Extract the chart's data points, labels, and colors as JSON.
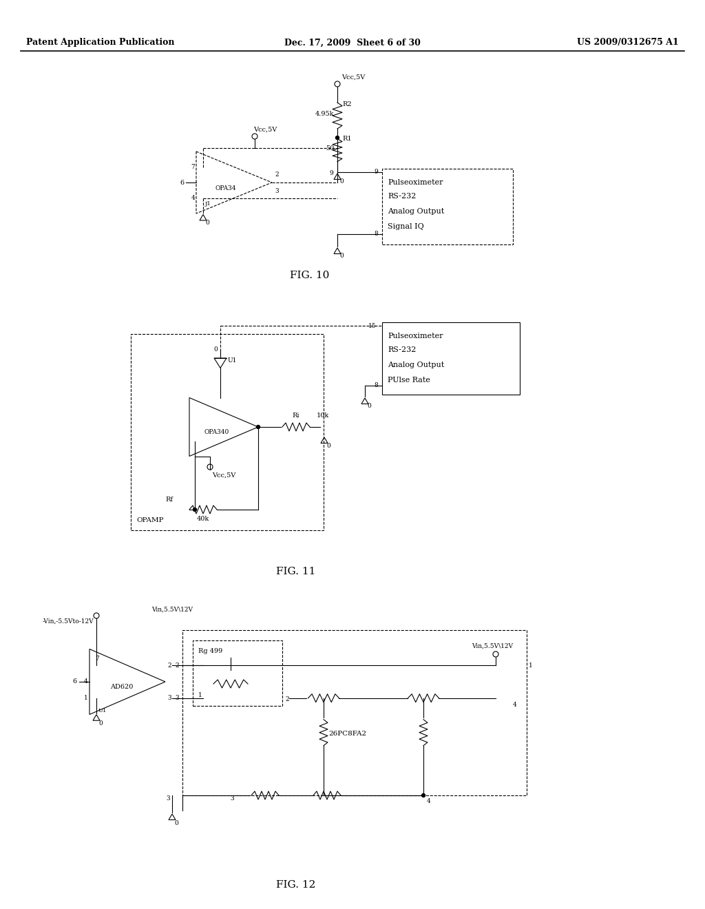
{
  "bg_color": "#ffffff",
  "header_left": "Patent Application Publication",
  "header_center": "Dec. 17, 2009  Sheet 6 of 30",
  "header_right": "US 2009/0312675 A1",
  "fig10_label": "FIG. 10",
  "fig11_label": "FIG. 11",
  "fig12_label": "FIG. 12"
}
